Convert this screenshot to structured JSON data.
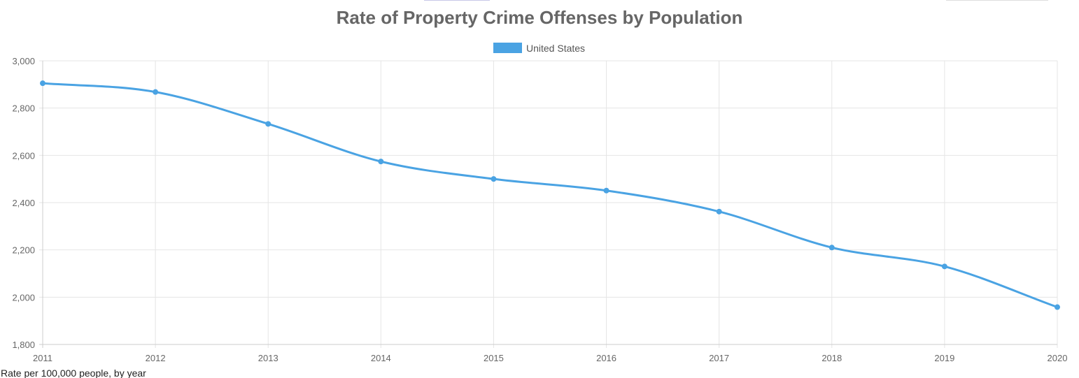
{
  "chart_data": {
    "type": "line",
    "title": "Rate of Property Crime Offenses by Population",
    "categories": [
      "2011",
      "2012",
      "2013",
      "2014",
      "2015",
      "2016",
      "2017",
      "2018",
      "2019",
      "2020"
    ],
    "series": [
      {
        "name": "United States",
        "color": "#4aa3e3",
        "values": [
          2905,
          2868,
          2733,
          2574,
          2500,
          2451,
          2362,
          2210,
          2130,
          1958
        ]
      }
    ],
    "y_ticks": [
      "3,000",
      "2,800",
      "2,600",
      "2,400",
      "2,200",
      "2,000",
      "1,800"
    ],
    "ylim": [
      1800,
      3000
    ],
    "xlabel": "",
    "ylabel": "",
    "grid": true,
    "legend_position": "top-center"
  },
  "caption": "Rate per 100,000 people, by year"
}
